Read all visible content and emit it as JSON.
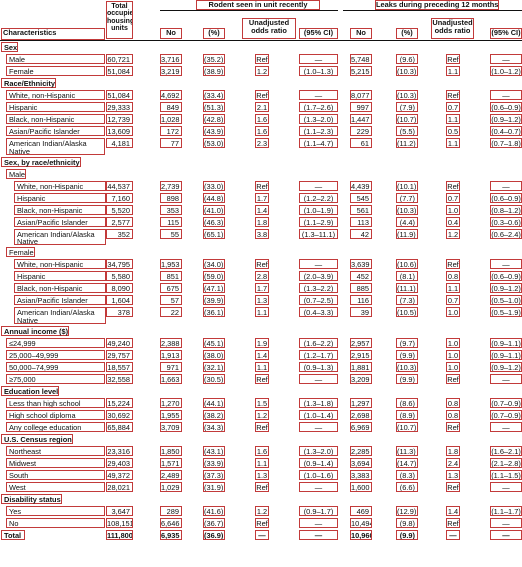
{
  "header": {
    "characteristics": "Characteristics",
    "total_units": "Total occupied housing units",
    "rodent_group": "Rodent seen in unit recently",
    "leaks_group": "Leaks during preceding 12 months",
    "no": "No",
    "pct": "(%)",
    "unadj_or": "Unadjusted odds ratio",
    "ci": "(95% CI)"
  },
  "rows": [
    {
      "type": "section",
      "label": "Sex"
    },
    {
      "type": "data",
      "indent": 1,
      "label": "Male",
      "total": "60,721",
      "r_no": "3,716",
      "r_pct": "(35.2)",
      "r_or": "Ref",
      "r_ci": "—",
      "l_no": "5,748",
      "l_pct": "(9.6)",
      "l_or": "Ref",
      "l_ci": "—"
    },
    {
      "type": "data",
      "indent": 1,
      "label": "Female",
      "total": "51,084",
      "r_no": "3,219",
      "r_pct": "(38.9)",
      "r_or": "1.2",
      "r_ci": "(1.0–1.3)",
      "l_no": "5,215",
      "l_pct": "(10.3)",
      "l_or": "1.1",
      "l_ci": "(1.0–1.2)"
    },
    {
      "type": "section",
      "label": "Race/Ethnicity"
    },
    {
      "type": "data",
      "indent": 1,
      "label": "White, non-Hispanic",
      "total": "51,084",
      "r_no": "4,692",
      "r_pct": "(33.4)",
      "r_or": "Ref",
      "r_ci": "—",
      "l_no": "8,077",
      "l_pct": "(10.3)",
      "l_or": "Ref",
      "l_ci": "—"
    },
    {
      "type": "data",
      "indent": 1,
      "label": "Hispanic",
      "total": "29,333",
      "r_no": "849",
      "r_pct": "(51.3)",
      "r_or": "2.1",
      "r_ci": "(1.7–2.6)",
      "l_no": "997",
      "l_pct": "(7.9)",
      "l_or": "0.7",
      "l_ci": "(0.6–0.9)"
    },
    {
      "type": "data",
      "indent": 1,
      "label": "Black, non-Hispanic",
      "total": "12,739",
      "r_no": "1,028",
      "r_pct": "(42.8)",
      "r_or": "1.6",
      "r_ci": "(1.3–2.0)",
      "l_no": "1,447",
      "l_pct": "(10.7)",
      "l_or": "1.1",
      "l_ci": "(0.9–1.2)"
    },
    {
      "type": "data",
      "indent": 1,
      "label": "Asian/Pacific Islander",
      "total": "13,609",
      "r_no": "172",
      "r_pct": "(43.9)",
      "r_or": "1.6",
      "r_ci": "(1.1–2.3)",
      "l_no": "229",
      "l_pct": "(5.5)",
      "l_or": "0.5",
      "l_ci": "(0.4–0.7)"
    },
    {
      "type": "data",
      "indent": 1,
      "label": "American Indian/Alaska Native",
      "total": "4,181",
      "r_no": "77",
      "r_pct": "(53.0)",
      "r_or": "2.3",
      "r_ci": "(1.1–4.7)",
      "l_no": "61",
      "l_pct": "(11.2)",
      "l_or": "1.1",
      "l_ci": "(0.7–1.8)"
    },
    {
      "type": "section",
      "label": "Sex, by race/ethnicity"
    },
    {
      "type": "group",
      "label": "Male"
    },
    {
      "type": "data",
      "indent": 2,
      "label": "White, non-Hispanic",
      "total": "44,537",
      "r_no": "2,739",
      "r_pct": "(33.0)",
      "r_or": "Ref",
      "r_ci": "—",
      "l_no": "4,439",
      "l_pct": "(10.1)",
      "l_or": "Ref",
      "l_ci": "—"
    },
    {
      "type": "data",
      "indent": 2,
      "label": "Hispanic",
      "total": "7,160",
      "r_no": "898",
      "r_pct": "(44.8)",
      "r_or": "1.7",
      "r_ci": "(1.2–2.2)",
      "l_no": "545",
      "l_pct": "(7.7)",
      "l_or": "0.7",
      "l_ci": "(0.6–0.9)"
    },
    {
      "type": "data",
      "indent": 2,
      "label": "Black, non-Hispanic",
      "total": "5,520",
      "r_no": "353",
      "r_pct": "(41.0)",
      "r_or": "1.4",
      "r_ci": "(1.0–1.9)",
      "l_no": "561",
      "l_pct": "(10.3)",
      "l_or": "1.0",
      "l_ci": "(0.8–1.2)"
    },
    {
      "type": "data",
      "indent": 2,
      "label": "Asian/Pacific Islander",
      "total": "2,577",
      "r_no": "115",
      "r_pct": "(46.3)",
      "r_or": "1.8",
      "r_ci": "(1.1–2.9)",
      "l_no": "113",
      "l_pct": "(4.4)",
      "l_or": "0.4",
      "l_ci": "(0.3–0.6)"
    },
    {
      "type": "data",
      "indent": 2,
      "label": "American Indian/Alaska Native",
      "total": "352",
      "r_no": "55",
      "r_pct": "(65.1)",
      "r_or": "3.8",
      "r_ci": "(1.3–11.1)",
      "l_no": "42",
      "l_pct": "(11.9)",
      "l_or": "1.2",
      "l_ci": "(0.6–2.4)"
    },
    {
      "type": "group",
      "label": "Female"
    },
    {
      "type": "data",
      "indent": 2,
      "label": "White, non-Hispanic",
      "total": "34,795",
      "r_no": "1,953",
      "r_pct": "(34.0)",
      "r_or": "Ref",
      "r_ci": "—",
      "l_no": "3,639",
      "l_pct": "(10.6)",
      "l_or": "Ref",
      "l_ci": "—"
    },
    {
      "type": "data",
      "indent": 2,
      "label": "Hispanic",
      "total": "5,580",
      "r_no": "851",
      "r_pct": "(59.0)",
      "r_or": "2.8",
      "r_ci": "(2.0–3.9)",
      "l_no": "452",
      "l_pct": "(8.1)",
      "l_or": "0.8",
      "l_ci": "(0.6–0.9)"
    },
    {
      "type": "data",
      "indent": 2,
      "label": "Black, non-Hispanic",
      "total": "8,090",
      "r_no": "675",
      "r_pct": "(47.1)",
      "r_or": "1.7",
      "r_ci": "(1.3–2.2)",
      "l_no": "885",
      "l_pct": "(11.1)",
      "l_or": "1.1",
      "l_ci": "(0.9–1.2)"
    },
    {
      "type": "data",
      "indent": 2,
      "label": "Asian/Pacific Islander",
      "total": "1,604",
      "r_no": "57",
      "r_pct": "(39.9)",
      "r_or": "1.3",
      "r_ci": "(0.7–2.5)",
      "l_no": "116",
      "l_pct": "(7.3)",
      "l_or": "0.7",
      "l_ci": "(0.5–1.0)"
    },
    {
      "type": "data",
      "indent": 2,
      "label": "American Indian/Alaska Native",
      "total": "378",
      "r_no": "22",
      "r_pct": "(36.1)",
      "r_or": "1.1",
      "r_ci": "(0.4–3.3)",
      "l_no": "39",
      "l_pct": "(10.5)",
      "l_or": "1.0",
      "l_ci": "(0.5–1.9)"
    },
    {
      "type": "section",
      "label": "Annual income ($)"
    },
    {
      "type": "data",
      "indent": 1,
      "label": "≤24,999",
      "total": "49,240",
      "r_no": "2,388",
      "r_pct": "(45.1)",
      "r_or": "1.9",
      "r_ci": "(1.6–2.2)",
      "l_no": "2,957",
      "l_pct": "(9.7)",
      "l_or": "1.0",
      "l_ci": "(0.9–1.1)"
    },
    {
      "type": "data",
      "indent": 1,
      "label": "25,000–49,999",
      "total": "29,757",
      "r_no": "1,913",
      "r_pct": "(38.0)",
      "r_or": "1.4",
      "r_ci": "(1.2–1.7)",
      "l_no": "2,915",
      "l_pct": "(9.9)",
      "l_or": "1.0",
      "l_ci": "(0.9–1.1)"
    },
    {
      "type": "data",
      "indent": 1,
      "label": "50,000–74,999",
      "total": "18,557",
      "r_no": "971",
      "r_pct": "(32.1)",
      "r_or": "1.1",
      "r_ci": "(0.9–1.3)",
      "l_no": "1,881",
      "l_pct": "(10.3)",
      "l_or": "1.0",
      "l_ci": "(0.9–1.2)"
    },
    {
      "type": "data",
      "indent": 1,
      "label": "≥75,000",
      "total": "32,558",
      "r_no": "1,663",
      "r_pct": "(30.5)",
      "r_or": "Ref",
      "r_ci": "—",
      "l_no": "3,209",
      "l_pct": "(9.9)",
      "l_or": "Ref",
      "l_ci": "—"
    },
    {
      "type": "section",
      "label": "Education level"
    },
    {
      "type": "data",
      "indent": 1,
      "label": "Less than high school",
      "total": "15,224",
      "r_no": "1,270",
      "r_pct": "(44.1)",
      "r_or": "1.5",
      "r_ci": "(1.3–1.8)",
      "l_no": "1,297",
      "l_pct": "(8.6)",
      "l_or": "0.8",
      "l_ci": "(0.7–0.9)"
    },
    {
      "type": "data",
      "indent": 1,
      "label": "High school diploma",
      "total": "30,692",
      "r_no": "1,955",
      "r_pct": "(38.2)",
      "r_or": "1.2",
      "r_ci": "(1.0–1.4)",
      "l_no": "2,698",
      "l_pct": "(8.9)",
      "l_or": "0.8",
      "l_ci": "(0.7–0.9)"
    },
    {
      "type": "data",
      "indent": 1,
      "label": "Any college education",
      "total": "65,884",
      "r_no": "3,709",
      "r_pct": "(34.3)",
      "r_or": "Ref",
      "r_ci": "—",
      "l_no": "6,969",
      "l_pct": "(10.7)",
      "l_or": "Ref",
      "l_ci": "—"
    },
    {
      "type": "section",
      "label": "U.S. Census region"
    },
    {
      "type": "data",
      "indent": 1,
      "label": "Northeast",
      "total": "23,316",
      "r_no": "1,850",
      "r_pct": "(43.1)",
      "r_or": "1.6",
      "r_ci": "(1.3–2.0)",
      "l_no": "2,285",
      "l_pct": "(11.3)",
      "l_or": "1.8",
      "l_ci": "(1.6–2.1)"
    },
    {
      "type": "data",
      "indent": 1,
      "label": "Midwest",
      "total": "29,403",
      "r_no": "1,571",
      "r_pct": "(33.9)",
      "r_or": "1.1",
      "r_ci": "(0.9–1.4)",
      "l_no": "3,694",
      "l_pct": "(14.7)",
      "l_or": "2.4",
      "l_ci": "(2.1–2.8)"
    },
    {
      "type": "data",
      "indent": 1,
      "label": "South",
      "total": "49,372",
      "r_no": "2,489",
      "r_pct": "(37.3)",
      "r_or": "1.3",
      "r_ci": "(1.0–1.6)",
      "l_no": "3,383",
      "l_pct": "(8.3)",
      "l_or": "1.3",
      "l_ci": "(1.1–1.5)"
    },
    {
      "type": "data",
      "indent": 1,
      "label": "West",
      "total": "28,021",
      "r_no": "1,029",
      "r_pct": "(31.9)",
      "r_or": "Ref",
      "r_ci": "—",
      "l_no": "1,600",
      "l_pct": "(6.6)",
      "l_or": "Ref",
      "l_ci": "—"
    },
    {
      "type": "section",
      "label": "Disability status"
    },
    {
      "type": "data",
      "indent": 1,
      "label": "Yes",
      "total": "3,647",
      "r_no": "289",
      "r_pct": "(41.6)",
      "r_or": "1.2",
      "r_ci": "(0.9–1.7)",
      "l_no": "469",
      "l_pct": "(12.9)",
      "l_or": "1.4",
      "l_ci": "(1.1–1.7)"
    },
    {
      "type": "data",
      "indent": 1,
      "label": "No",
      "total": "108,151",
      "r_no": "6,646",
      "r_pct": "(36.7)",
      "r_or": "Ref",
      "r_ci": "—",
      "l_no": "10,494",
      "l_pct": "(9.8)",
      "l_or": "Ref",
      "l_ci": "—"
    },
    {
      "type": "total",
      "label": "Total",
      "total": "111,800",
      "r_no": "6,935",
      "r_pct": "(36.9)",
      "r_or": "—",
      "r_ci": "—",
      "l_no": "10,960",
      "l_pct": "(9.9)",
      "l_or": "—",
      "l_ci": "—"
    }
  ]
}
